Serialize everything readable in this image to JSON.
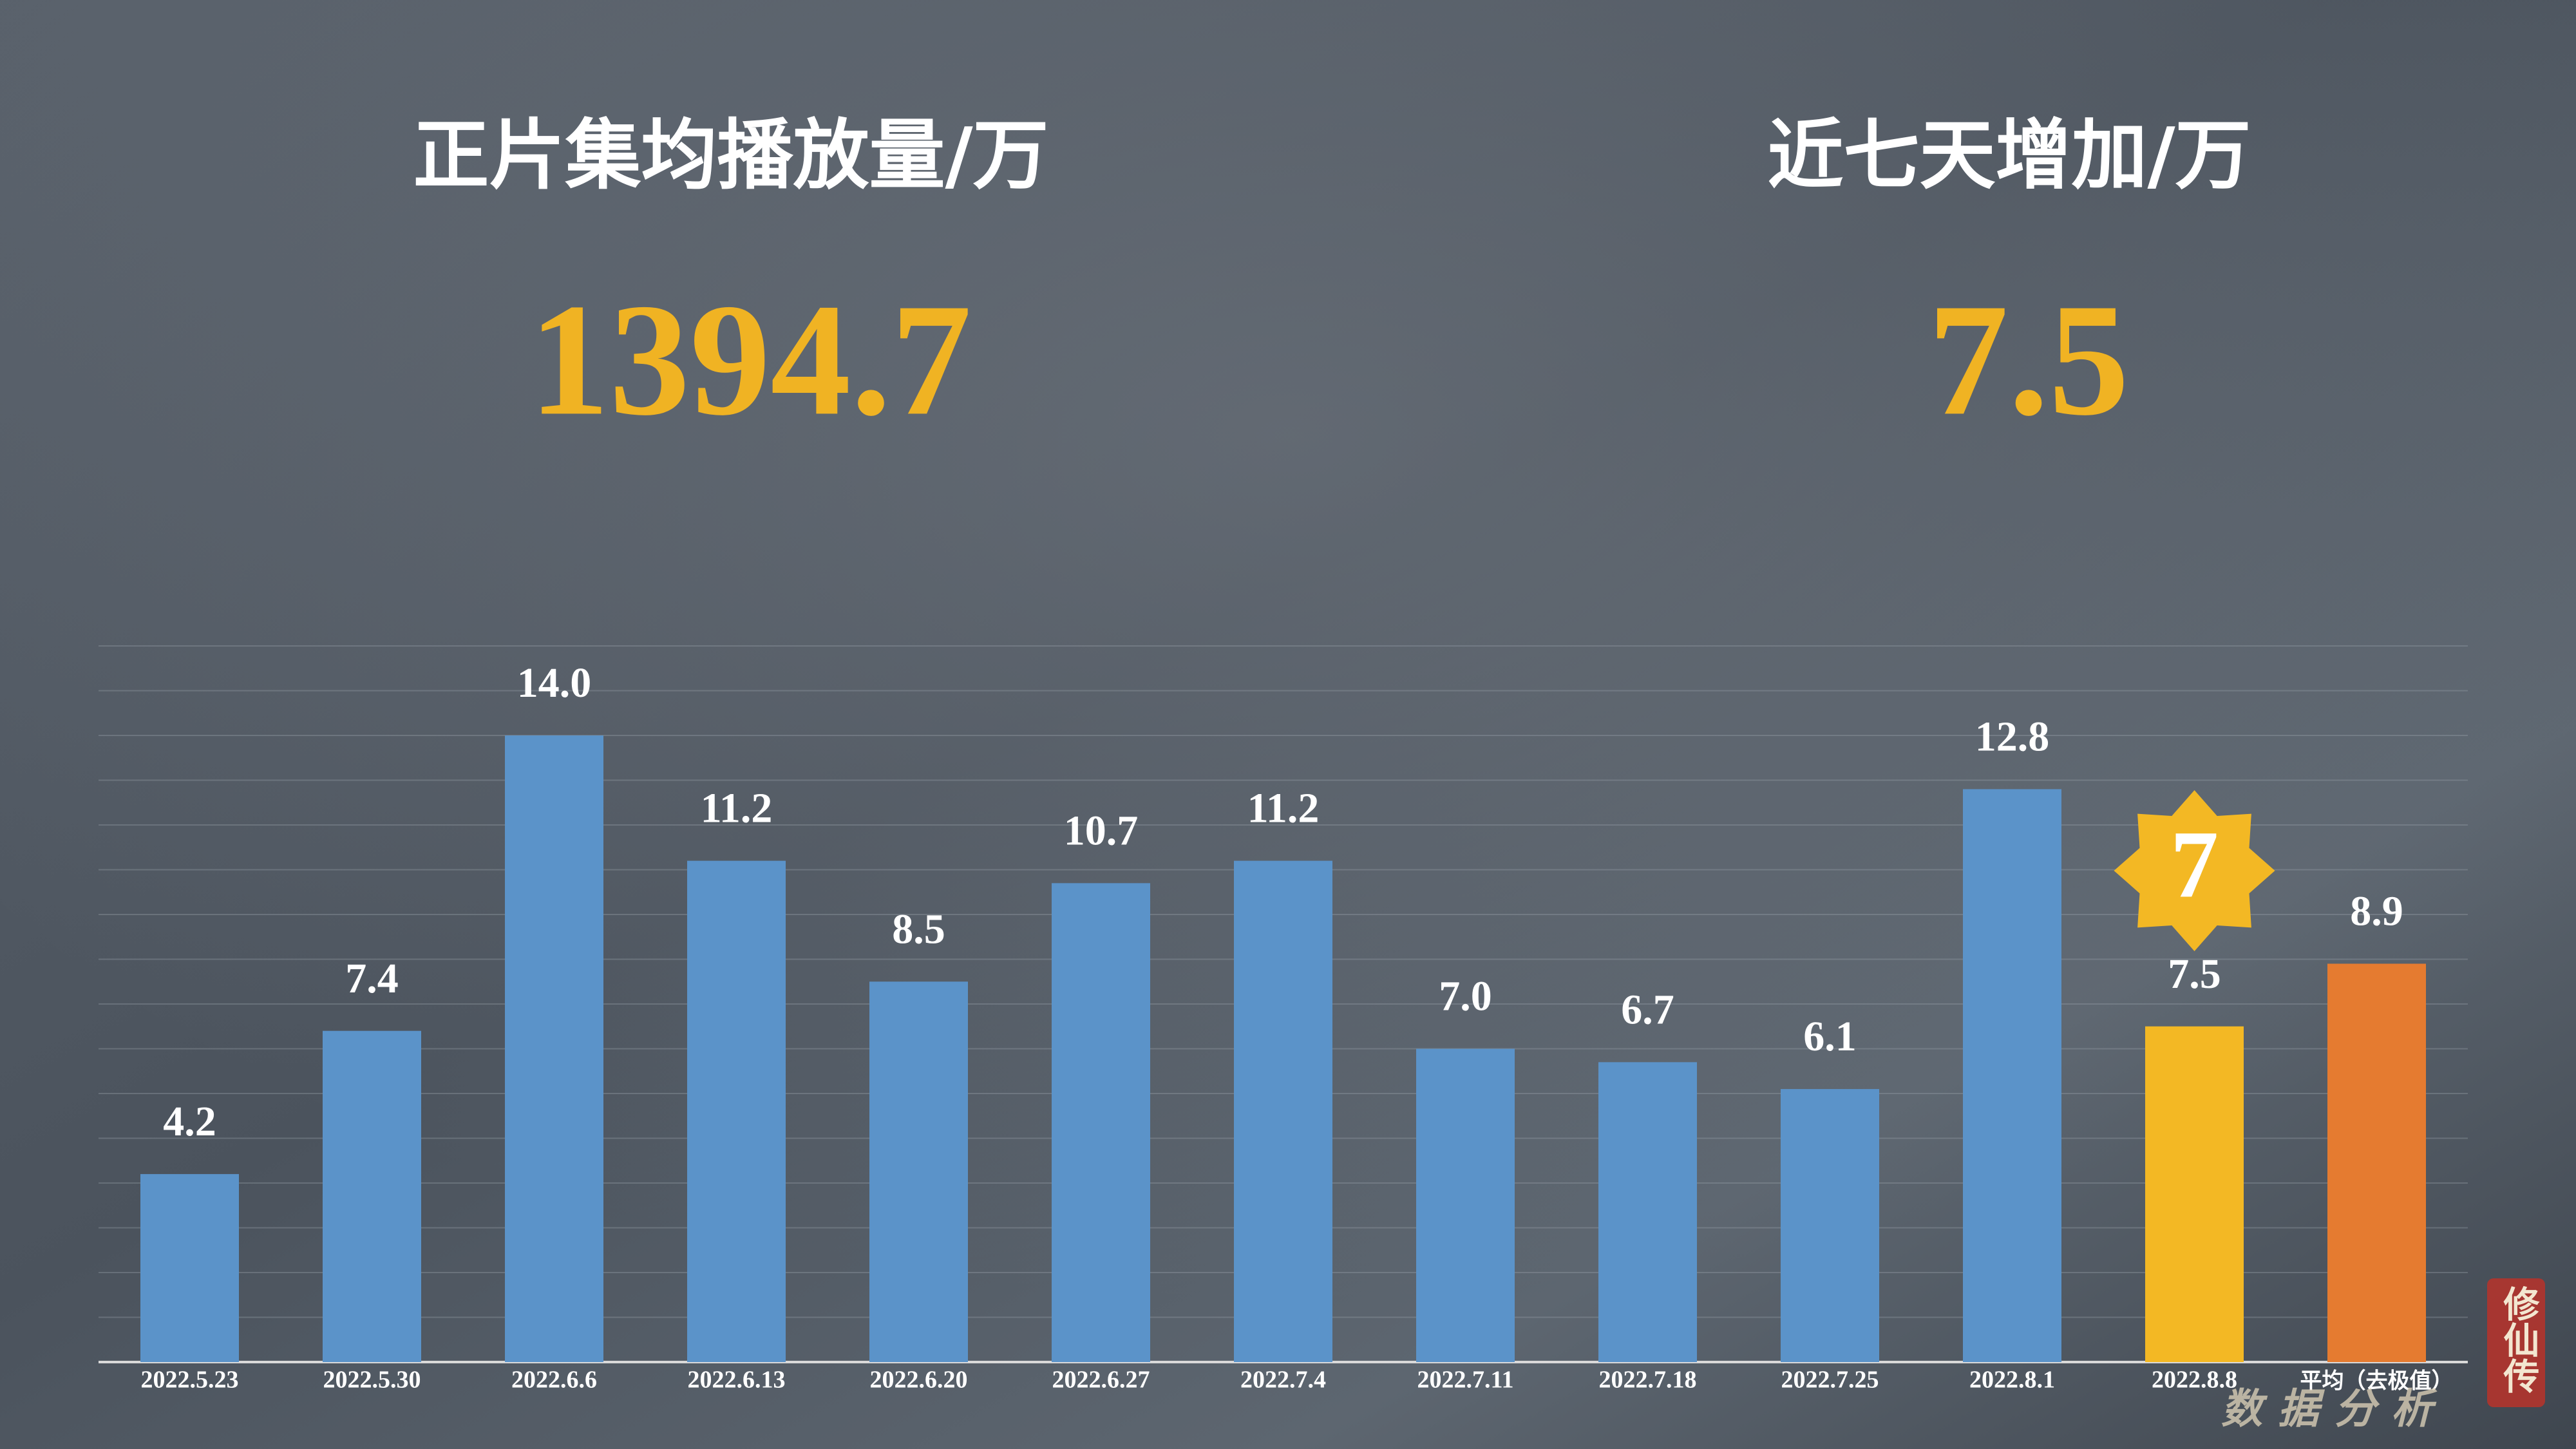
{
  "header": {
    "stats": [
      {
        "label": "正片集均播放量/万",
        "value": "1394.7"
      },
      {
        "label": "近七天增加/万",
        "value": "7.5"
      }
    ]
  },
  "chart_data": {
    "type": "bar",
    "categories": [
      "2022.5.23",
      "2022.5.30",
      "2022.6.6",
      "2022.6.13",
      "2022.6.20",
      "2022.6.27",
      "2022.7.4",
      "2022.7.11",
      "2022.7.18",
      "2022.7.25",
      "2022.8.1",
      "2022.8.8",
      "平均（去极值）"
    ],
    "values": [
      4.2,
      7.4,
      14.0,
      11.2,
      8.5,
      10.7,
      11.2,
      7.0,
      6.7,
      6.1,
      12.8,
      7.5,
      8.9
    ],
    "value_labels": [
      "4.2",
      "7.4",
      "14.0",
      "11.2",
      "8.5",
      "10.7",
      "11.2",
      "7.0",
      "6.7",
      "6.1",
      "12.8",
      "7.5",
      "8.9"
    ],
    "colors": [
      "#5b93c9",
      "#5b93c9",
      "#5b93c9",
      "#5b93c9",
      "#5b93c9",
      "#5b93c9",
      "#5b93c9",
      "#5b93c9",
      "#5b93c9",
      "#5b93c9",
      "#5b93c9",
      "#f3b824",
      "#e57b30"
    ],
    "ylim": [
      0,
      16
    ],
    "yticks": [
      0,
      1,
      2,
      3,
      4,
      5,
      6,
      7,
      8,
      9,
      10,
      11,
      12,
      13,
      14,
      15,
      16
    ],
    "grid": true,
    "badge": {
      "text": "7",
      "category_index": 11
    }
  },
  "watermark": {
    "text": "数据分析",
    "seal": "修仙传"
  }
}
